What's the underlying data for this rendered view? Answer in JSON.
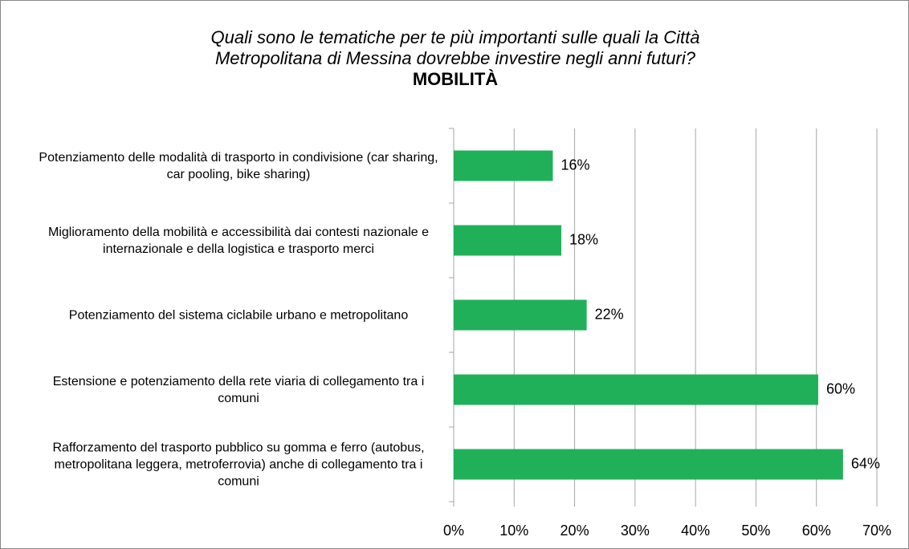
{
  "chart_data": {
    "type": "bar",
    "orientation": "horizontal",
    "title": "Quali sono le tematiche per te più importanti sulle quali la Città Metropolitana di Messina dovrebbe investire negli anni futuri?",
    "subtitle": "MOBILITÀ",
    "categories": [
      "Potenziamento delle modalità di trasporto in condivisione (car sharing, car pooling, bike sharing)",
      "Miglioramento della mobilità e accessibilità dai contesti nazionale e internazionale e della logistica e trasporto merci",
      "Potenziamento del sistema ciclabile urbano e metropolitano",
      "Estensione e potenziamento della rete viaria di collegamento tra i comuni",
      "Rafforzamento del trasporto pubblico su gomma e ferro (autobus, metropolitana leggera, metroferrovia) anche di collegamento tra i comuni"
    ],
    "values": [
      16.4,
      17.8,
      22.0,
      60.3,
      64.4
    ],
    "value_labels": [
      "16%",
      "18%",
      "22%",
      "60%",
      "64%"
    ],
    "color": "#21b05a",
    "xlim": [
      0,
      70
    ],
    "xticks": [
      {
        "value": 0,
        "label": "0%"
      },
      {
        "value": 10,
        "label": "10%"
      },
      {
        "value": 20,
        "label": "20%"
      },
      {
        "value": 30,
        "label": "30%"
      },
      {
        "value": 40,
        "label": "40%"
      },
      {
        "value": 50,
        "label": "50%"
      },
      {
        "value": 60,
        "label": "60%"
      },
      {
        "value": 70,
        "label": "70%"
      }
    ],
    "grid": true
  }
}
